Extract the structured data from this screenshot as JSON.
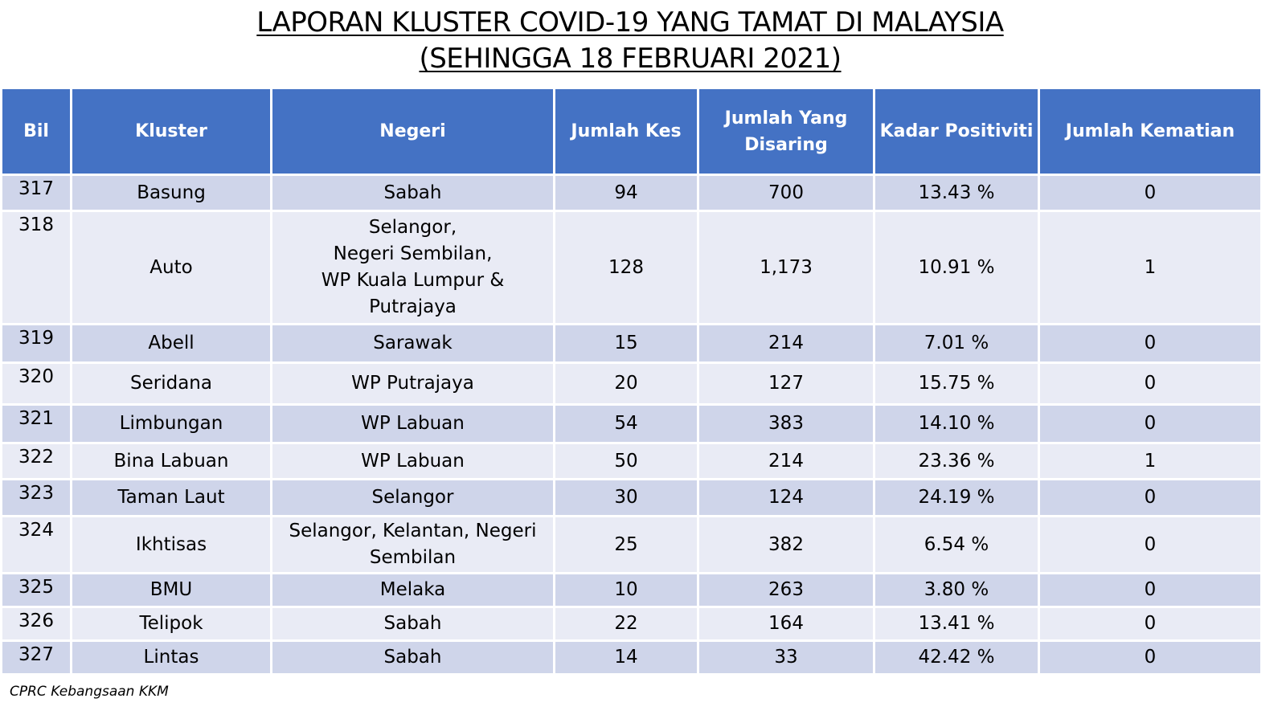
{
  "title": {
    "line1": "LAPORAN KLUSTER COVID-19 YANG TAMAT DI MALAYSIA",
    "line2": "(SEHINGGA 18 FEBRUARI 2021)"
  },
  "table": {
    "headers": [
      "Bil",
      "Kluster",
      "Negeri",
      "Jumlah Kes",
      "Jumlah Yang Disaring",
      "Kadar Positiviti",
      "Jumlah Kematian"
    ],
    "rows": [
      {
        "bil": "317",
        "kluster": "Basung",
        "negeri": "Sabah",
        "kes": "94",
        "disaring": "700",
        "positiviti": "13.43 %",
        "kematian": "0"
      },
      {
        "bil": "318",
        "kluster": "Auto",
        "negeri": "Selangor,\nNegeri Sembilan,\nWP Kuala Lumpur & Putrajaya",
        "kes": "128",
        "disaring": "1,173",
        "positiviti": "10.91 %",
        "kematian": "1"
      },
      {
        "bil": "319",
        "kluster": "Abell",
        "negeri": "Sarawak",
        "kes": "15",
        "disaring": "214",
        "positiviti": "7.01 %",
        "kematian": "0"
      },
      {
        "bil": "320",
        "kluster": "Seridana",
        "negeri": "WP Putrajaya",
        "kes": "20",
        "disaring": "127",
        "positiviti": "15.75 %",
        "kematian": "0"
      },
      {
        "bil": "321",
        "kluster": "Limbungan",
        "negeri": "WP Labuan",
        "kes": "54",
        "disaring": "383",
        "positiviti": "14.10 %",
        "kematian": "0"
      },
      {
        "bil": "322",
        "kluster": "Bina Labuan",
        "negeri": "WP Labuan",
        "kes": "50",
        "disaring": "214",
        "positiviti": "23.36 %",
        "kematian": "1"
      },
      {
        "bil": "323",
        "kluster": "Taman Laut",
        "negeri": "Selangor",
        "kes": "30",
        "disaring": "124",
        "positiviti": "24.19 %",
        "kematian": "0"
      },
      {
        "bil": "324",
        "kluster": "Ikhtisas",
        "negeri": "Selangor, Kelantan, Negeri\nSembilan",
        "kes": "25",
        "disaring": "382",
        "positiviti": "6.54 %",
        "kematian": "0"
      },
      {
        "bil": "325",
        "kluster": "BMU",
        "negeri": "Melaka",
        "kes": "10",
        "disaring": "263",
        "positiviti": "3.80 %",
        "kematian": "0"
      },
      {
        "bil": "326",
        "kluster": "Telipok",
        "negeri": "Sabah",
        "kes": "22",
        "disaring": "164",
        "positiviti": "13.41 %",
        "kematian": "0"
      },
      {
        "bil": "327",
        "kluster": "Lintas",
        "negeri": "Sabah",
        "kes": "14",
        "disaring": "33",
        "positiviti": "42.42 %",
        "kematian": "0"
      }
    ]
  },
  "source": "CPRC Kebangsaan KKM",
  "colors": {
    "header_bg": "#4472c4",
    "row_dark": "#cfd5ea",
    "row_light": "#e9ebf5"
  }
}
